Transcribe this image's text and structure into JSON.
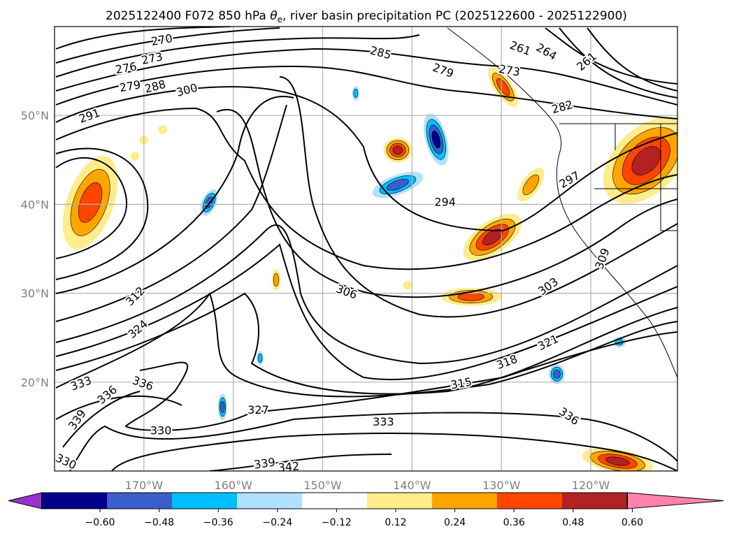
{
  "chart_data": {
    "type": "map-contour",
    "title": "2025122400 F072 850 hPa θe, river basin precipitation PC (2025122600 - 2025122900)",
    "title_parts": {
      "prefix": "2025122400 F072 850 hPa ",
      "theta": "θ",
      "sub": "e",
      "suffix": ", river basin precipitation PC (2025122600 - 2025122900)"
    },
    "lon_range": [
      -180,
      -110.3
    ],
    "lat_range": [
      10,
      60
    ],
    "grid": true,
    "lon_ticks": [
      {
        "value": -170,
        "label": "170°W"
      },
      {
        "value": -160,
        "label": "160°W"
      },
      {
        "value": -150,
        "label": "150°W"
      },
      {
        "value": -140,
        "label": "140°W"
      },
      {
        "value": -130,
        "label": "130°W"
      },
      {
        "value": -120,
        "label": "120°W"
      }
    ],
    "lat_ticks": [
      {
        "value": 50,
        "label": "50°N"
      },
      {
        "value": 40,
        "label": "40°N"
      },
      {
        "value": 30,
        "label": "30°N"
      },
      {
        "value": 20,
        "label": "20°N"
      }
    ],
    "contour_labels": [
      {
        "v": "270",
        "lon": -168,
        "lat": 58.3,
        "rot": -10
      },
      {
        "v": "273",
        "lon": -169.1,
        "lat": 56.7,
        "rot": -12
      },
      {
        "v": "276",
        "lon": -172,
        "lat": 54.8,
        "rot": -10
      },
      {
        "v": "279",
        "lon": -171.4,
        "lat": 53.9,
        "rot": -10
      },
      {
        "v": "288",
        "lon": -168.9,
        "lat": 53.3,
        "rot": -15
      },
      {
        "v": "300",
        "lon": -165.2,
        "lat": 52.9,
        "rot": -15
      },
      {
        "v": "291",
        "lon": -176.1,
        "lat": 50,
        "rot": -20
      },
      {
        "v": "285",
        "lon": -143.5,
        "lat": 57.1,
        "rot": 15
      },
      {
        "v": "279",
        "lon": -136.5,
        "lat": 55.1,
        "rot": 20
      },
      {
        "v": "261",
        "lon": -127.5,
        "lat": 57.6,
        "rot": 20
      },
      {
        "v": "264",
        "lon": -125.3,
        "lat": 57.2,
        "rot": 30
      },
      {
        "v": "261",
        "lon": -120.5,
        "lat": 56.1,
        "rot": -40
      },
      {
        "v": "273",
        "lon": -129.1,
        "lat": 55.1,
        "rot": 10
      },
      {
        "v": "282",
        "lon": -123.2,
        "lat": 51,
        "rot": -15
      },
      {
        "v": "297",
        "lon": -122.4,
        "lat": 42.8,
        "rot": -30
      },
      {
        "v": "294",
        "lon": -136.3,
        "lat": 40.3,
        "rot": 0
      },
      {
        "v": "306",
        "lon": -147.3,
        "lat": 30.2,
        "rot": 20
      },
      {
        "v": "312",
        "lon": -171,
        "lat": 29.7,
        "rot": -45
      },
      {
        "v": "324",
        "lon": -170.7,
        "lat": 26,
        "rot": -40
      },
      {
        "v": "303",
        "lon": -124.8,
        "lat": 30.8,
        "rot": -35
      },
      {
        "v": "309",
        "lon": -118.75,
        "lat": 33.9,
        "rot": -70
      },
      {
        "v": "321",
        "lon": -124.8,
        "lat": 24.5,
        "rot": -25
      },
      {
        "v": "318",
        "lon": -129.4,
        "lat": 22.3,
        "rot": -20
      },
      {
        "v": "315",
        "lon": -134.5,
        "lat": 19.9,
        "rot": -10
      },
      {
        "v": "333",
        "lon": -176.7,
        "lat": 19.9,
        "rot": -20
      },
      {
        "v": "336",
        "lon": -170.1,
        "lat": 19.9,
        "rot": 20
      },
      {
        "v": "336",
        "lon": -174.5,
        "lat": 18.6,
        "rot": -40
      },
      {
        "v": "339",
        "lon": -177.5,
        "lat": 15.8,
        "rot": -55
      },
      {
        "v": "330",
        "lon": -178.7,
        "lat": 11.1,
        "rot": 25
      },
      {
        "v": "327",
        "lon": -157.2,
        "lat": 16.9,
        "rot": 0
      },
      {
        "v": "330",
        "lon": -168.1,
        "lat": 14.6,
        "rot": 0
      },
      {
        "v": "333",
        "lon": -143.2,
        "lat": 15.6,
        "rot": 0
      },
      {
        "v": "336",
        "lon": -122.4,
        "lat": 16.2,
        "rot": 35
      },
      {
        "v": "339",
        "lon": -156.3,
        "lat": 10.9,
        "rot": -8
      },
      {
        "v": "342",
        "lon": -154,
        "lat": 10.5,
        "rot": -5
      }
    ],
    "precip_areas": [
      {
        "lon": -176,
        "lat": 40.2,
        "value": 0.36,
        "rlon": 2.6,
        "rlat": 5.5,
        "rot": 20
      },
      {
        "lon": -141.6,
        "lat": 46.1,
        "value": 0.48,
        "rlon": 1.6,
        "rlat": 1.4,
        "rot": 0
      },
      {
        "lon": -137.3,
        "lat": 47.3,
        "value": -0.48,
        "rlon": 1.2,
        "rlat": 3,
        "rot": -15
      },
      {
        "lon": -141.6,
        "lat": 42.2,
        "value": -0.36,
        "rlon": 3,
        "rlat": 1.1,
        "rot": -20
      },
      {
        "lon": -131,
        "lat": 36.3,
        "value": 0.48,
        "rlon": 3.8,
        "rlat": 1.8,
        "rot": -35
      },
      {
        "lon": -133.4,
        "lat": 29.6,
        "value": 0.36,
        "rlon": 3.4,
        "rlat": 1,
        "rot": 0
      },
      {
        "lon": -126.7,
        "lat": 42.2,
        "value": 0.24,
        "rlon": 1,
        "rlat": 2.2,
        "rot": 35
      },
      {
        "lon": -129.8,
        "lat": 53.2,
        "value": 0.36,
        "rlon": 1,
        "rlat": 2.6,
        "rot": -35
      },
      {
        "lon": -113.8,
        "lat": 44.9,
        "value": 0.48,
        "rlon": 3.6,
        "rlat": 5.8,
        "rot": 45
      },
      {
        "lon": -117,
        "lat": 11.1,
        "value": 0.48,
        "rlon": 4,
        "rlat": 1.3,
        "rot": 10
      },
      {
        "lon": -162.7,
        "lat": 40.2,
        "value": -0.36,
        "rlon": 0.8,
        "rlat": 1.6,
        "rot": 25
      },
      {
        "lon": -155.2,
        "lat": 31.5,
        "value": 0.24,
        "rlon": 0.5,
        "rlat": 1.2,
        "rot": 0
      },
      {
        "lon": -161.2,
        "lat": 17.2,
        "value": -0.36,
        "rlon": 0.5,
        "rlat": 1.5,
        "rot": 0
      },
      {
        "lon": -123.8,
        "lat": 20.9,
        "value": -0.36,
        "rlon": 0.9,
        "rlat": 1.1,
        "rot": 0
      },
      {
        "lon": -146.3,
        "lat": 52.5,
        "value": -0.24,
        "rlon": 0.4,
        "rlat": 0.8,
        "rot": 0
      },
      {
        "lon": -116.8,
        "lat": 24.5,
        "value": -0.24,
        "rlon": 0.7,
        "rlat": 0.6,
        "rot": 0
      },
      {
        "lon": -157,
        "lat": 22.7,
        "value": -0.24,
        "rlon": 0.4,
        "rlat": 0.8,
        "rot": 0
      },
      {
        "lon": -170,
        "lat": 47.2,
        "value": 0.12,
        "rlon": 0.5,
        "rlat": 0.5,
        "rot": 0
      },
      {
        "lon": -167.9,
        "lat": 48.4,
        "value": 0.12,
        "rlon": 0.5,
        "rlat": 0.5,
        "rot": 0
      },
      {
        "lon": -171,
        "lat": 45.4,
        "value": 0.12,
        "rlon": 0.5,
        "rlat": 0.5,
        "rot": 0
      },
      {
        "lon": -140.5,
        "lat": 30.9,
        "value": 0.12,
        "rlon": 0.5,
        "rlat": 0.5,
        "rot": 0
      }
    ],
    "colorbar": {
      "boundaries": [
        -0.6,
        -0.48,
        -0.36,
        -0.24,
        -0.12,
        0.12,
        0.24,
        0.36,
        0.48,
        0.6
      ],
      "labels": [
        "−0.60",
        "−0.48",
        "−0.36",
        "−0.24",
        "−0.12",
        "0.12",
        "0.24",
        "0.36",
        "0.48",
        "0.60"
      ],
      "colors": [
        "#9932cc",
        "#00008b",
        "#3a5fcd",
        "#00bfff",
        "#b0e2ff",
        "#ffffff",
        "#ffec8b",
        "#ffa500",
        "#ff4500",
        "#b22222",
        "#ff82ab"
      ],
      "extend": "both"
    }
  }
}
